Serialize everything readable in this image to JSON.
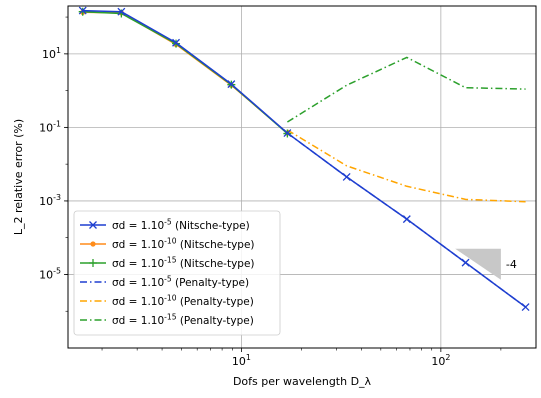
{
  "chart_data": {
    "type": "line",
    "xlabel": "Dofs per wavelength D_λ",
    "ylabel": "L_2 relative error (%)",
    "xscale": "log",
    "yscale": "log",
    "xlim": [
      1.35,
      300
    ],
    "ylim": [
      1e-07,
      200
    ],
    "grid": true,
    "legend_position": "bottom-left",
    "x_ticks": [
      {
        "value": 10,
        "label": "10^1"
      },
      {
        "value": 100,
        "label": "10^2"
      }
    ],
    "y_ticks": [
      {
        "value": 10,
        "label": "10^1"
      },
      {
        "value": 0.1,
        "label": "10^-1"
      },
      {
        "value": 0.001,
        "label": "10^-3"
      },
      {
        "value": 1e-05,
        "label": "10^-5"
      }
    ],
    "series": [
      {
        "name": "σd = 1.10^-5 (Nitsche-type)",
        "color": "#1f3fd0",
        "line": "solid",
        "marker": "x",
        "x": [
          1.6,
          2.5,
          4.7,
          8.9,
          17,
          33.7,
          67.5,
          133,
          266
        ],
        "y": [
          150,
          140,
          20,
          1.5,
          0.07,
          0.0045,
          0.00032,
          2.1e-05,
          1.3e-06
        ]
      },
      {
        "name": "σd = 1.10^-10 (Nitsche-type)",
        "color": "#ff8c1a",
        "line": "solid",
        "marker": "dot",
        "x": [
          1.6,
          2.5,
          4.7,
          8.9,
          17
        ],
        "y": [
          135,
          130,
          18,
          1.4,
          0.07
        ]
      },
      {
        "name": "σd = 1.10^-15 (Nitsche-type)",
        "color": "#2ca02c",
        "line": "solid",
        "marker": "plus",
        "x": [
          1.6,
          2.5,
          4.7,
          8.9,
          17
        ],
        "y": [
          140,
          125,
          19,
          1.45,
          0.068
        ]
      },
      {
        "name": "σd = 1.10^-5 (Penalty-type)",
        "color": "#1f3fd0",
        "line": "dashdot",
        "marker": "none",
        "x": [
          17,
          33.7,
          67.5,
          133,
          266
        ],
        "y": [
          0.07,
          0.0045,
          0.00032,
          2.1e-05,
          1.3e-06
        ]
      },
      {
        "name": "σd = 1.10^-10 (Penalty-type)",
        "color": "#ffa500",
        "line": "dashdot",
        "marker": "none",
        "x": [
          17,
          33.7,
          67.5,
          133,
          266
        ],
        "y": [
          0.085,
          0.009,
          0.0025,
          0.0011,
          0.00095
        ]
      },
      {
        "name": "σd = 1.10^-15 (Penalty-type)",
        "color": "#2ca02c",
        "line": "dashdot",
        "marker": "none",
        "x": [
          17,
          33.7,
          67.5,
          133,
          266
        ],
        "y": [
          0.14,
          1.4,
          8,
          1.2,
          1.1
        ]
      }
    ],
    "annotations": [
      {
        "text": "-4",
        "x": 200,
        "y": 1.9e-05
      }
    ],
    "slope_triangle": {
      "x": [
        118,
        200
      ],
      "y": [
        5e-05,
        7.2e-06
      ],
      "color": "#c8c8c8"
    }
  }
}
